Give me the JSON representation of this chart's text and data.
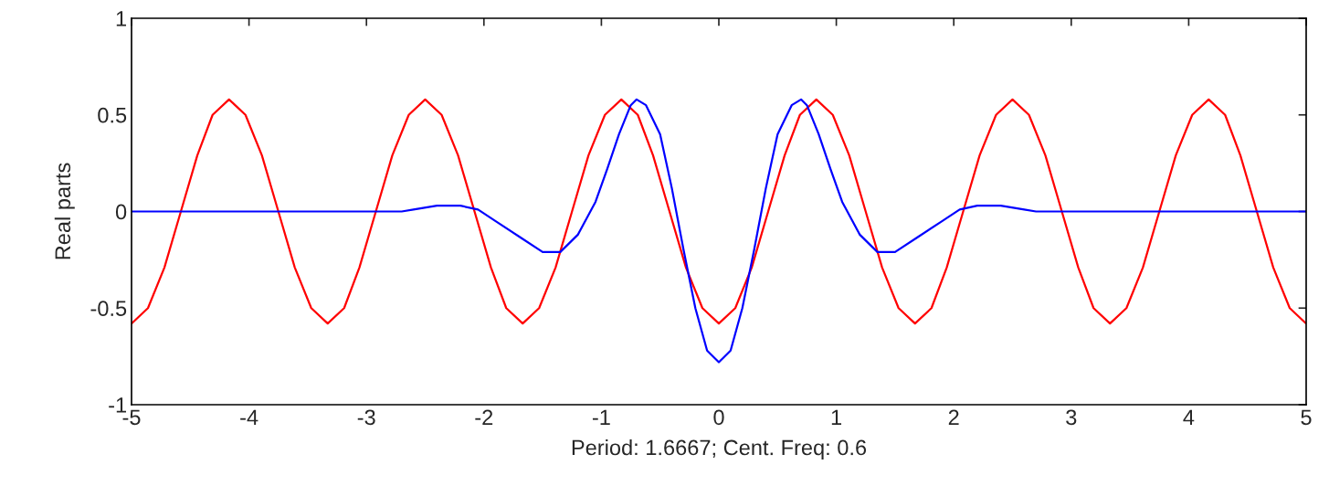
{
  "chart_data": {
    "type": "line",
    "xlabel": "Period: 1.6667; Cent. Freq: 0.6",
    "ylabel": "Real parts",
    "xlim": [
      -5,
      5
    ],
    "xticks": [
      -5,
      -4,
      -3,
      -2,
      -1,
      0,
      1,
      2,
      3,
      4,
      5
    ],
    "ylim": [
      -1,
      1
    ],
    "yticks": [
      -1,
      -0.5,
      0,
      0.5,
      1
    ],
    "grid": false,
    "legend": false,
    "marker": "none",
    "line_style": "solid",
    "series": [
      {
        "color": "#ff0000",
        "x": [
          -5.0,
          -4.86,
          -4.72,
          -4.58,
          -4.44,
          -4.31,
          -4.17,
          -4.03,
          -3.89,
          -3.75,
          -3.61,
          -3.47,
          -3.33,
          -3.19,
          -3.06,
          -2.92,
          -2.78,
          -2.64,
          -2.5,
          -2.36,
          -2.22,
          -2.08,
          -1.94,
          -1.81,
          -1.67,
          -1.53,
          -1.39,
          -1.25,
          -1.11,
          -0.97,
          -0.83,
          -0.69,
          -0.56,
          -0.42,
          -0.28,
          -0.14,
          0,
          0.14,
          0.28,
          0.42,
          0.56,
          0.69,
          0.83,
          0.97,
          1.11,
          1.25,
          1.39,
          1.53,
          1.67,
          1.81,
          1.94,
          2.08,
          2.22,
          2.36,
          2.5,
          2.64,
          2.78,
          2.92,
          3.06,
          3.19,
          3.33,
          3.47,
          3.61,
          3.75,
          3.89,
          4.03,
          4.17,
          4.31,
          4.44,
          4.58,
          4.72,
          4.86,
          5.0
        ],
        "values": [
          -0.58,
          -0.5,
          -0.29,
          0,
          0.29,
          0.5,
          0.58,
          0.5,
          0.29,
          0,
          -0.29,
          -0.5,
          -0.58,
          -0.5,
          -0.29,
          0,
          0.29,
          0.5,
          0.58,
          0.5,
          0.29,
          0,
          -0.29,
          -0.5,
          -0.58,
          -0.5,
          -0.29,
          0,
          0.29,
          0.5,
          0.58,
          0.5,
          0.29,
          0,
          -0.29,
          -0.5,
          -0.58,
          -0.5,
          -0.29,
          0,
          0.29,
          0.5,
          0.58,
          0.5,
          0.29,
          0,
          -0.29,
          -0.5,
          -0.58,
          -0.5,
          -0.29,
          0,
          0.29,
          0.5,
          0.58,
          0.5,
          0.29,
          0,
          -0.29,
          -0.5,
          -0.58,
          -0.5,
          -0.29,
          0,
          0.29,
          0.5,
          0.58,
          0.5,
          0.29,
          0,
          -0.29,
          -0.5,
          -0.58
        ]
      },
      {
        "color": "#0000ff",
        "x": [
          -5,
          -4,
          -3,
          -2.7,
          -2.6,
          -2.4,
          -2.2,
          -2.05,
          -1.9,
          -1.7,
          -1.5,
          -1.35,
          -1.2,
          -1.05,
          -0.95,
          -0.85,
          -0.75,
          -0.7,
          -0.62,
          -0.5,
          -0.4,
          -0.3,
          -0.2,
          -0.1,
          0,
          0.1,
          0.2,
          0.3,
          0.4,
          0.5,
          0.62,
          0.7,
          0.75,
          0.85,
          0.95,
          1.05,
          1.2,
          1.35,
          1.5,
          1.7,
          1.9,
          2.05,
          2.2,
          2.4,
          2.6,
          2.7,
          3,
          4,
          5
        ],
        "values": [
          0,
          0,
          0,
          0,
          0.01,
          0.03,
          0.03,
          0.01,
          -0.05,
          -0.13,
          -0.21,
          -0.21,
          -0.12,
          0.05,
          0.22,
          0.4,
          0.55,
          0.58,
          0.55,
          0.4,
          0.12,
          -0.2,
          -0.5,
          -0.72,
          -0.78,
          -0.72,
          -0.5,
          -0.2,
          0.12,
          0.4,
          0.55,
          0.58,
          0.55,
          0.4,
          0.22,
          0.05,
          -0.12,
          -0.21,
          -0.21,
          -0.13,
          -0.05,
          0.01,
          0.03,
          0.03,
          0.01,
          0,
          0,
          0,
          0
        ]
      }
    ]
  }
}
